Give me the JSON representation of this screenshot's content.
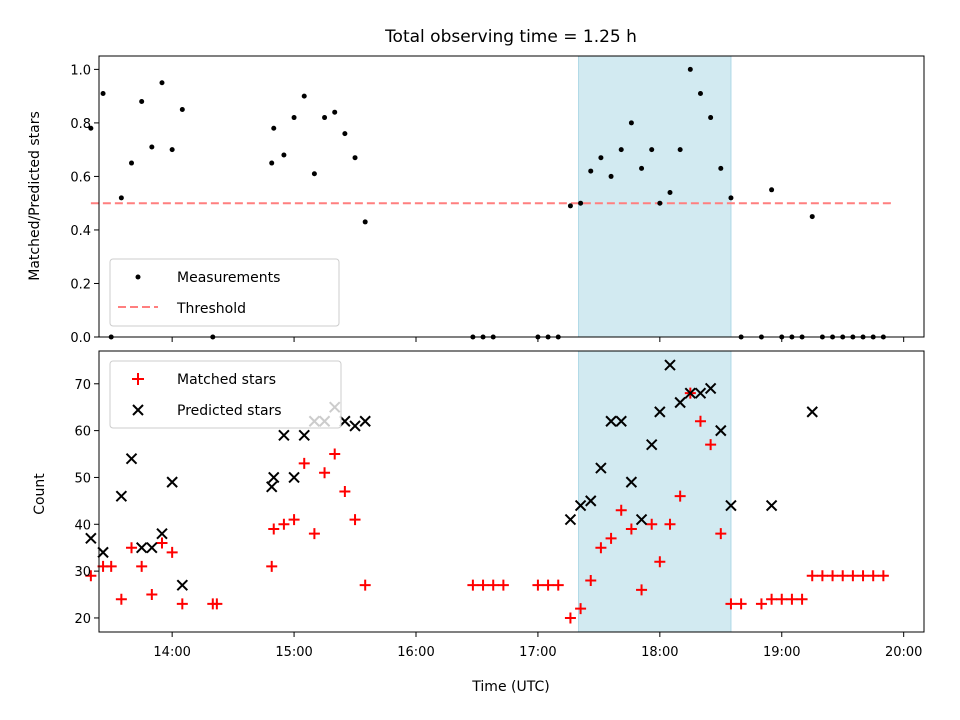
{
  "chart_data": [
    {
      "type": "scatter",
      "title": "Total observing time = 1.25 h",
      "xlabel": "",
      "ylabel": "Matched/Predicted stars",
      "xlim": [
        "13:24",
        "20:10"
      ],
      "ylim": [
        0,
        1.05
      ],
      "yticks": [
        "0.0",
        "0.2",
        "0.4",
        "0.6",
        "0.8",
        "1.0"
      ],
      "highlight_span": [
        "17:20",
        "18:35"
      ],
      "legend": {
        "position": "lower-left",
        "entries": [
          "Measurements",
          "Threshold"
        ]
      },
      "series": [
        {
          "name": "Measurements",
          "marker": "dot",
          "color": "#000000",
          "points": [
            [
              "13:20",
              0.78
            ],
            [
              "13:26",
              0.91
            ],
            [
              "13:30",
              0.0
            ],
            [
              "13:35",
              0.52
            ],
            [
              "13:40",
              0.65
            ],
            [
              "13:45",
              0.88
            ],
            [
              "13:50",
              0.71
            ],
            [
              "13:55",
              0.95
            ],
            [
              "14:00",
              0.7
            ],
            [
              "14:05",
              0.85
            ],
            [
              "14:20",
              0.0
            ],
            [
              "14:49",
              0.65
            ],
            [
              "14:50",
              0.78
            ],
            [
              "14:55",
              0.68
            ],
            [
              "15:00",
              0.82
            ],
            [
              "15:05",
              0.9
            ],
            [
              "15:10",
              0.61
            ],
            [
              "15:15",
              0.82
            ],
            [
              "15:20",
              0.84
            ],
            [
              "15:25",
              0.76
            ],
            [
              "15:30",
              0.67
            ],
            [
              "15:35",
              0.43
            ],
            [
              "16:28",
              0.0
            ],
            [
              "16:33",
              0.0
            ],
            [
              "16:38",
              0.0
            ],
            [
              "17:00",
              0.0
            ],
            [
              "17:05",
              0.0
            ],
            [
              "17:10",
              0.0
            ],
            [
              "17:16",
              0.49
            ],
            [
              "17:21",
              0.5
            ],
            [
              "17:26",
              0.62
            ],
            [
              "17:31",
              0.67
            ],
            [
              "17:36",
              0.6
            ],
            [
              "17:41",
              0.7
            ],
            [
              "17:46",
              0.8
            ],
            [
              "17:51",
              0.63
            ],
            [
              "17:56",
              0.7
            ],
            [
              "18:00",
              0.5
            ],
            [
              "18:05",
              0.54
            ],
            [
              "18:10",
              0.7
            ],
            [
              "18:15",
              1.0
            ],
            [
              "18:20",
              0.91
            ],
            [
              "18:25",
              0.82
            ],
            [
              "18:30",
              0.63
            ],
            [
              "18:35",
              0.52
            ],
            [
              "18:40",
              0.0
            ],
            [
              "18:50",
              0.0
            ],
            [
              "18:55",
              0.55
            ],
            [
              "19:00",
              0.0
            ],
            [
              "19:05",
              0.0
            ],
            [
              "19:10",
              0.0
            ],
            [
              "19:15",
              0.45
            ],
            [
              "19:20",
              0.0
            ],
            [
              "19:25",
              0.0
            ],
            [
              "19:30",
              0.0
            ],
            [
              "19:35",
              0.0
            ],
            [
              "19:40",
              0.0
            ],
            [
              "19:45",
              0.0
            ],
            [
              "19:50",
              0.0
            ]
          ]
        },
        {
          "name": "Threshold",
          "line": "dashed",
          "color": "#ff7f7f",
          "points": [
            [
              "13:20",
              0.5
            ],
            [
              "19:55",
              0.5
            ]
          ]
        }
      ]
    },
    {
      "type": "scatter",
      "title": "",
      "xlabel": "Time (UTC)",
      "ylabel": "Count",
      "xlim": [
        "13:24",
        "20:10"
      ],
      "ylim": [
        17,
        77
      ],
      "yticks": [
        "20",
        "30",
        "40",
        "50",
        "60",
        "70"
      ],
      "xticks": [
        "14:00",
        "15:00",
        "16:00",
        "17:00",
        "18:00",
        "19:00",
        "20:00"
      ],
      "highlight_span": [
        "17:20",
        "18:35"
      ],
      "legend": {
        "position": "top-left",
        "entries": [
          "Matched stars",
          "Predicted stars"
        ]
      },
      "series": [
        {
          "name": "Matched stars",
          "marker": "plus",
          "color": "#ff0000",
          "points": [
            [
              "13:20",
              29
            ],
            [
              "13:26",
              31
            ],
            [
              "13:30",
              31
            ],
            [
              "13:35",
              24
            ],
            [
              "13:40",
              35
            ],
            [
              "13:45",
              31
            ],
            [
              "13:50",
              25
            ],
            [
              "13:55",
              36
            ],
            [
              "14:00",
              34
            ],
            [
              "14:05",
              23
            ],
            [
              "14:20",
              23
            ],
            [
              "14:22",
              23
            ],
            [
              "14:49",
              31
            ],
            [
              "14:50",
              39
            ],
            [
              "14:55",
              40
            ],
            [
              "15:00",
              41
            ],
            [
              "15:05",
              53
            ],
            [
              "15:10",
              38
            ],
            [
              "15:15",
              51
            ],
            [
              "15:20",
              55
            ],
            [
              "15:25",
              47
            ],
            [
              "15:30",
              41
            ],
            [
              "15:35",
              27
            ],
            [
              "16:28",
              27
            ],
            [
              "16:33",
              27
            ],
            [
              "16:38",
              27
            ],
            [
              "16:43",
              27
            ],
            [
              "17:00",
              27
            ],
            [
              "17:05",
              27
            ],
            [
              "17:10",
              27
            ],
            [
              "17:16",
              20
            ],
            [
              "17:21",
              22
            ],
            [
              "17:26",
              28
            ],
            [
              "17:31",
              35
            ],
            [
              "17:36",
              37
            ],
            [
              "17:41",
              43
            ],
            [
              "17:46",
              39
            ],
            [
              "17:51",
              26
            ],
            [
              "17:56",
              40
            ],
            [
              "18:00",
              32
            ],
            [
              "18:05",
              40
            ],
            [
              "18:10",
              46
            ],
            [
              "18:15",
              68
            ],
            [
              "18:20",
              62
            ],
            [
              "18:25",
              57
            ],
            [
              "18:30",
              38
            ],
            [
              "18:35",
              23
            ],
            [
              "18:40",
              23
            ],
            [
              "18:50",
              23
            ],
            [
              "18:55",
              24
            ],
            [
              "19:00",
              24
            ],
            [
              "19:05",
              24
            ],
            [
              "19:10",
              24
            ],
            [
              "19:15",
              29
            ],
            [
              "19:20",
              29
            ],
            [
              "19:25",
              29
            ],
            [
              "19:30",
              29
            ],
            [
              "19:35",
              29
            ],
            [
              "19:40",
              29
            ],
            [
              "19:45",
              29
            ],
            [
              "19:50",
              29
            ]
          ]
        },
        {
          "name": "Predicted stars",
          "marker": "x",
          "color": "#000000",
          "points": [
            [
              "13:20",
              37
            ],
            [
              "13:26",
              34
            ],
            [
              "13:35",
              46
            ],
            [
              "13:40",
              54
            ],
            [
              "13:45",
              35
            ],
            [
              "13:50",
              35
            ],
            [
              "13:55",
              38
            ],
            [
              "14:00",
              49
            ],
            [
              "14:05",
              27
            ],
            [
              "14:49",
              48
            ],
            [
              "14:50",
              50
            ],
            [
              "14:55",
              59
            ],
            [
              "15:00",
              50
            ],
            [
              "15:05",
              59
            ],
            [
              "15:10",
              62
            ],
            [
              "15:15",
              62
            ],
            [
              "15:20",
              65
            ],
            [
              "15:25",
              62
            ],
            [
              "15:30",
              61
            ],
            [
              "15:35",
              62
            ],
            [
              "17:16",
              41
            ],
            [
              "17:21",
              44
            ],
            [
              "17:26",
              45
            ],
            [
              "17:31",
              52
            ],
            [
              "17:36",
              62
            ],
            [
              "17:41",
              62
            ],
            [
              "17:46",
              49
            ],
            [
              "17:51",
              41
            ],
            [
              "17:56",
              57
            ],
            [
              "18:00",
              64
            ],
            [
              "18:05",
              74
            ],
            [
              "18:10",
              66
            ],
            [
              "18:15",
              68
            ],
            [
              "18:20",
              68
            ],
            [
              "18:25",
              69
            ],
            [
              "18:30",
              60
            ],
            [
              "18:35",
              44
            ],
            [
              "18:55",
              44
            ],
            [
              "19:15",
              64
            ]
          ]
        }
      ]
    }
  ],
  "colors": {
    "highlight": "#add8e6",
    "threshold": "#ff7f7f",
    "matched": "#ff0000",
    "predicted": "#000000",
    "measurements": "#000000"
  }
}
